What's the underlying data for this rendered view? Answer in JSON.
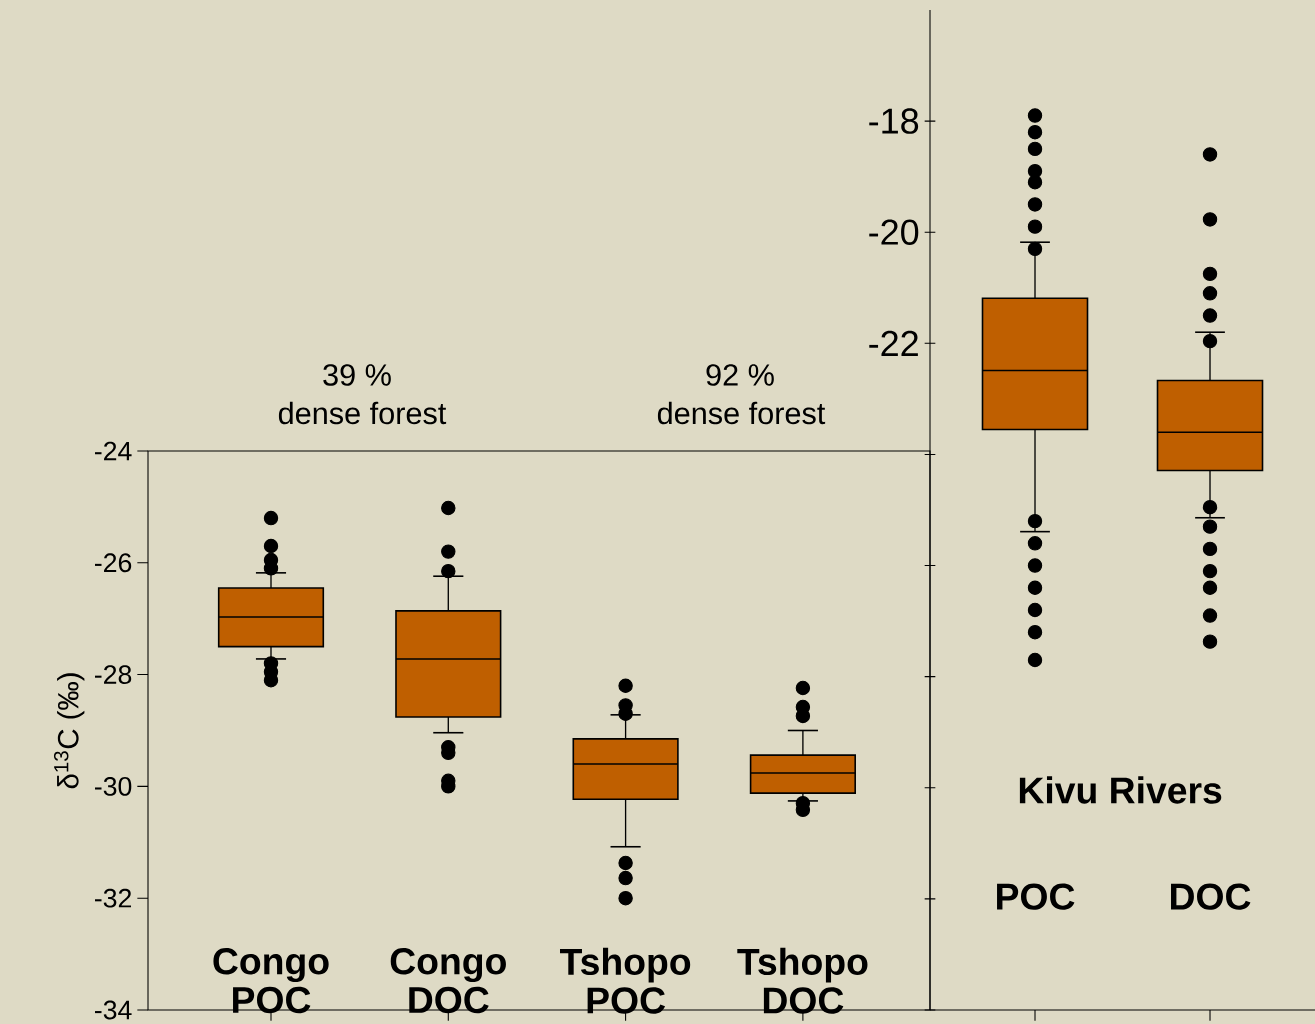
{
  "chart_data": [
    {
      "type": "box",
      "ylabel": "δ$^{13}$C (‰)",
      "color": "#bf5f00",
      "annotations": [
        "39 %",
        "dense forest",
        "92 %",
        "dense forest"
      ],
      "categories": [
        "Congo POC",
        "Congo DOC",
        "Tshopo POC",
        "Tshopo DOC"
      ],
      "boxes": [
        {
          "low": -27.72,
          "q1": -27.5,
          "median": -26.97,
          "q3": -26.45,
          "high": -26.18,
          "outliers": [
            -25.2,
            -25.7,
            -25.95,
            -26.1,
            -27.8,
            -27.95,
            -28.1
          ]
        },
        {
          "low": -29.04,
          "q1": -28.76,
          "median": -27.72,
          "q3": -26.86,
          "high": -26.24,
          "outliers": [
            -25.02,
            -25.8,
            -26.15,
            -29.3,
            -29.4,
            -29.9,
            -30.0
          ]
        },
        {
          "low": -31.08,
          "q1": -30.23,
          "median": -29.6,
          "q3": -29.15,
          "high": -28.72,
          "outliers": [
            -28.2,
            -28.55,
            -28.7,
            -31.37,
            -31.64,
            -32.0
          ]
        },
        {
          "low": -30.26,
          "q1": -30.12,
          "median": -29.76,
          "q3": -29.44,
          "high": -29.0,
          "outliers": [
            -28.24,
            -28.58,
            -28.74,
            -30.3,
            -30.42
          ]
        }
      ],
      "ylim": [
        -34,
        -24
      ],
      "yticks": [
        -34,
        -32,
        -30,
        -28,
        -26,
        -24
      ]
    },
    {
      "type": "box",
      "title": "Kivu Rivers",
      "color": "#bf5f00",
      "categories": [
        "POC",
        "DOC"
      ],
      "boxes": [
        {
          "low": -25.39,
          "q1": -23.55,
          "median": -22.49,
          "q3": -21.19,
          "high": -20.18,
          "outliers": [
            -17.9,
            -18.2,
            -18.5,
            -18.9,
            -19.1,
            -19.5,
            -19.9,
            -20.3,
            -25.2,
            -25.6,
            -26.0,
            -26.4,
            -26.8,
            -27.2,
            -27.7
          ]
        },
        {
          "low": -25.14,
          "q1": -24.29,
          "median": -23.6,
          "q3": -22.67,
          "high": -21.8,
          "outliers": [
            -18.6,
            -19.77,
            -20.75,
            -21.1,
            -21.5,
            -21.96,
            -24.95,
            -25.3,
            -25.7,
            -26.1,
            -26.4,
            -26.9,
            -27.37
          ]
        }
      ],
      "ylim": [
        -34,
        -16
      ],
      "yticks": [
        {
          "value": -34,
          "label": null
        },
        {
          "value": -32,
          "label": null
        },
        {
          "value": -30,
          "label": null
        },
        {
          "value": -28,
          "label": null
        },
        {
          "value": -26,
          "label": null
        },
        {
          "value": -24,
          "label": null
        },
        -22,
        -20,
        -18
      ]
    }
  ]
}
